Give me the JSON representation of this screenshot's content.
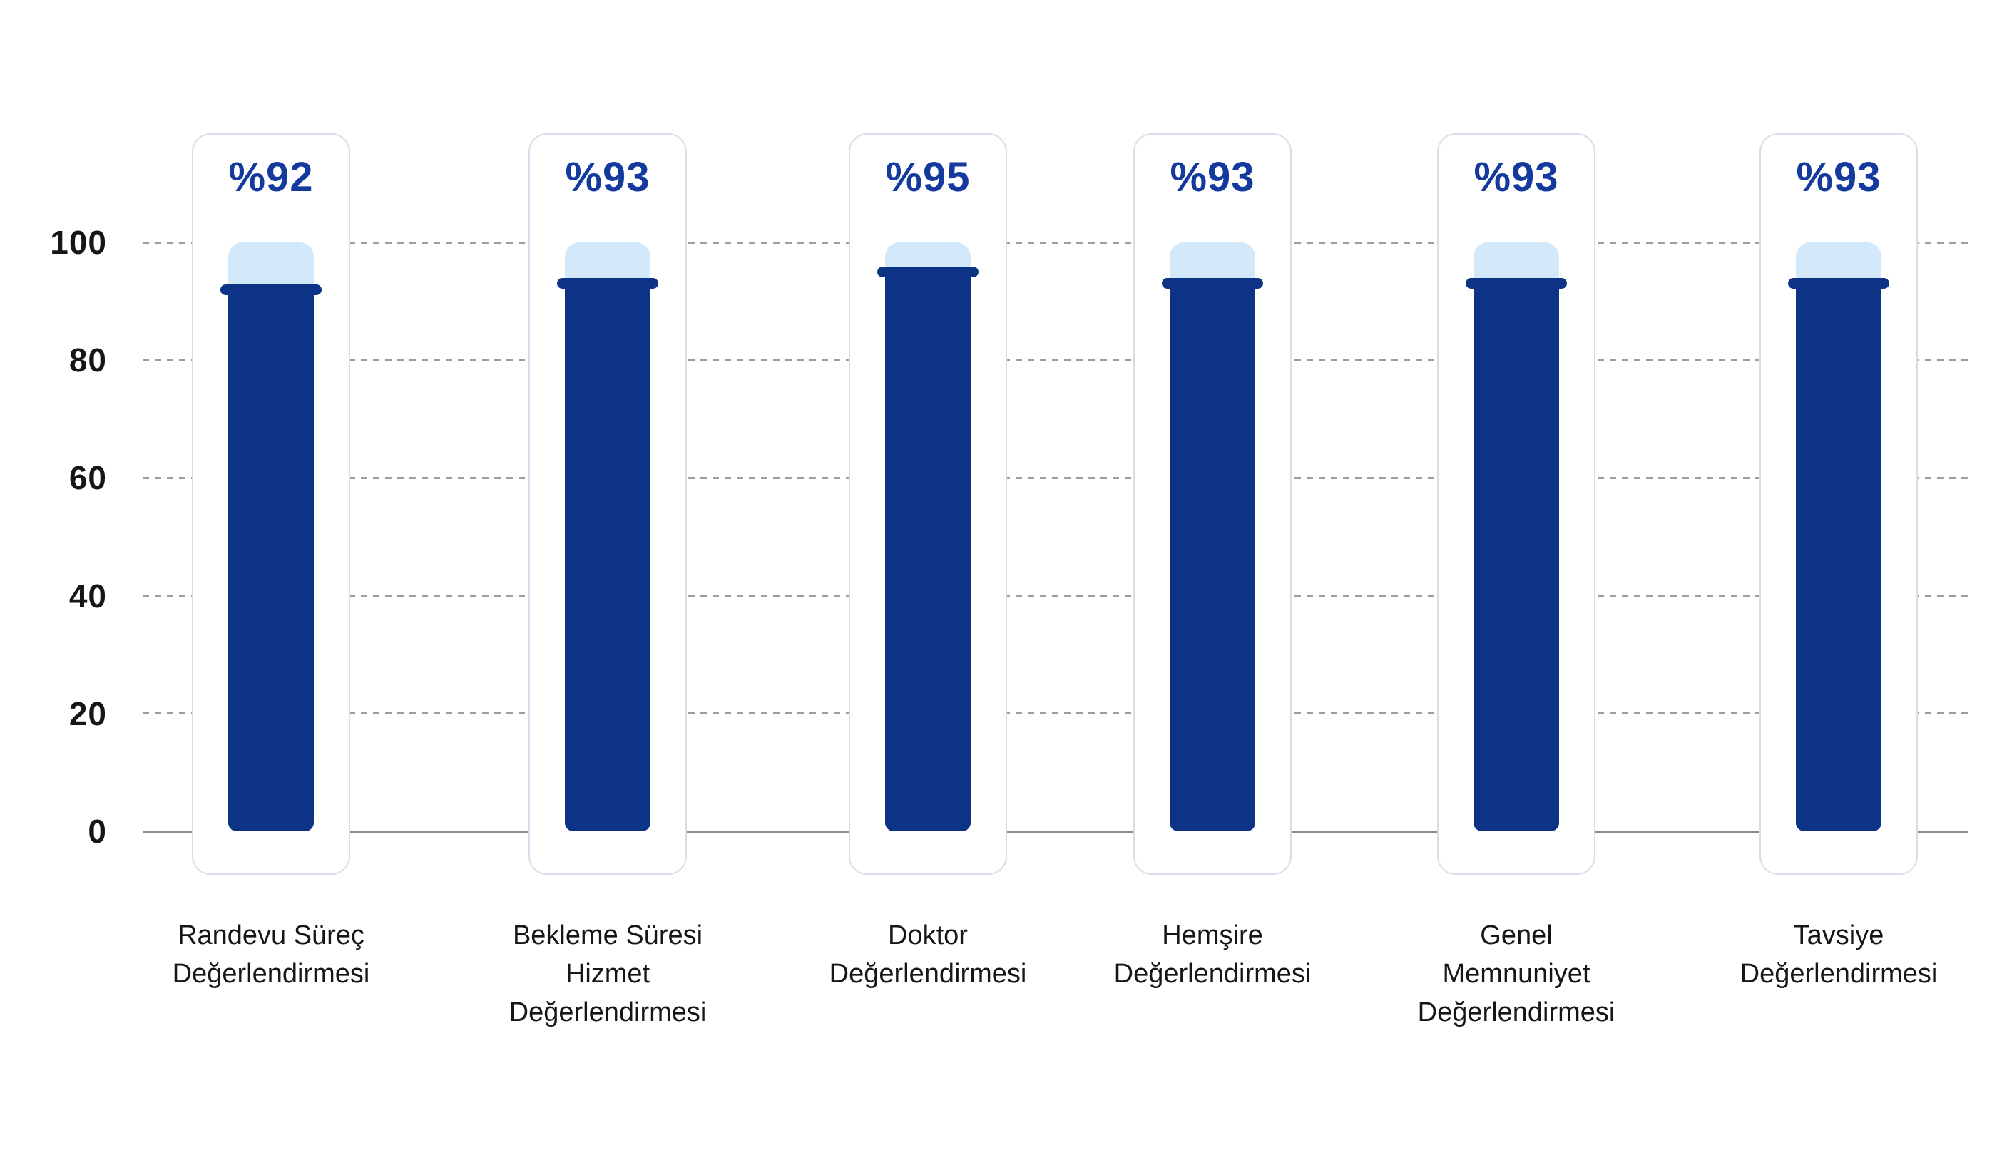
{
  "chart_data": {
    "type": "bar",
    "title": "",
    "categories": [
      [
        "Randevu Süreç",
        "Değerlendirmesi"
      ],
      [
        "Bekleme Süresi",
        "Hizmet",
        "Değerlendirmesi"
      ],
      [
        "Doktor",
        "Değerlendirmesi"
      ],
      [
        "Hemşire",
        "Değerlendirmesi"
      ],
      [
        "Genel",
        "Memnuniyet",
        "Değerlendirmesi"
      ],
      [
        "Tavsiye",
        "Değerlendirmesi"
      ]
    ],
    "values": [
      92,
      93,
      95,
      93,
      93,
      93
    ],
    "value_labels": [
      "%92",
      "%93",
      "%95",
      "%93",
      "%93",
      "%93"
    ],
    "ylim": [
      0,
      100
    ],
    "yticks": [
      0,
      20,
      40,
      60,
      80,
      100
    ],
    "ytick_labels": [
      "0",
      "20",
      "40",
      "60",
      "80",
      "100"
    ],
    "xlabel": "",
    "ylabel": "",
    "grid": "horizontal-dashed",
    "baseline": "solid-at-zero",
    "track_max": 100,
    "legend": "none"
  },
  "colors": {
    "bar_fill": "#0d3387",
    "track_fill": "#d3e8f8",
    "value_label": "#143a9d",
    "card_border": "#d9dceb",
    "card_background": "#ffffff",
    "gridline": "#8c8c8c",
    "tick_label": "#161616",
    "category_label": "#161616",
    "background": "#ffffff"
  }
}
